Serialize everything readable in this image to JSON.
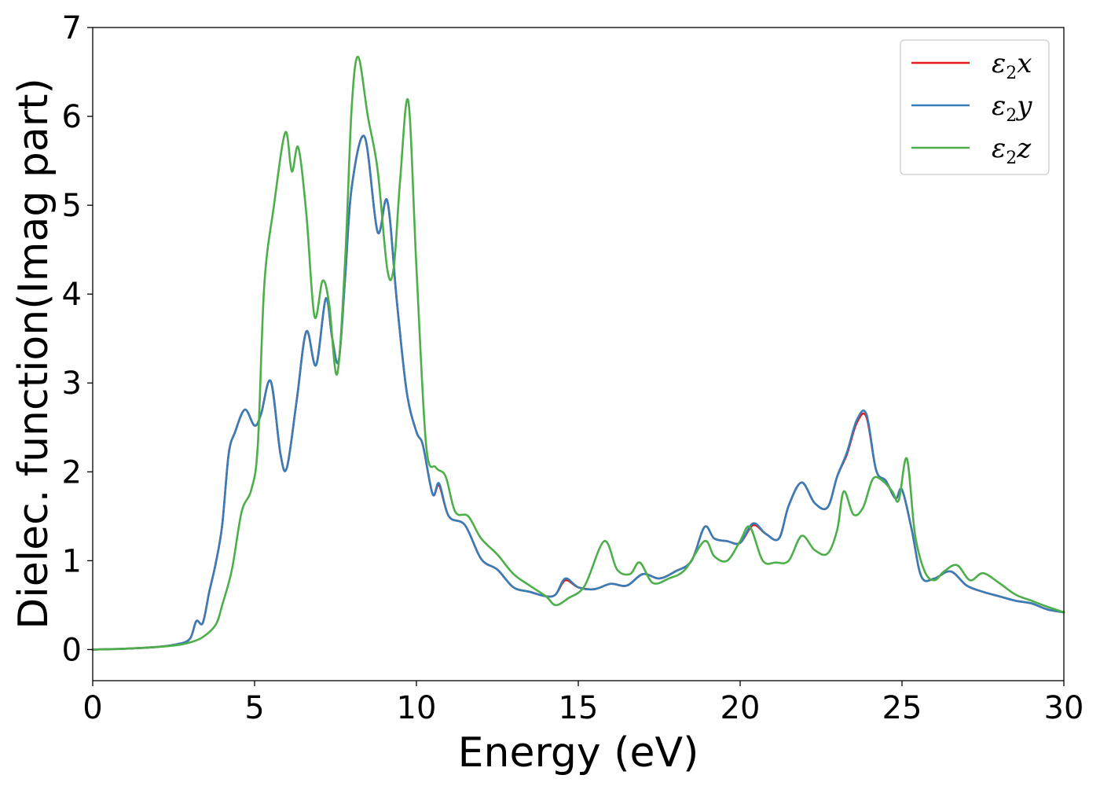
{
  "chart_data": {
    "type": "line",
    "xlabel": "Energy (eV)",
    "ylabel": "Dielec. function(Imag part)",
    "xlim": [
      0,
      30
    ],
    "ylim": [
      -0.35,
      7
    ],
    "xticks": [
      0,
      5,
      10,
      15,
      20,
      25,
      30
    ],
    "xtick_labels": [
      "0",
      "5",
      "10",
      "15",
      "20",
      "25",
      "30"
    ],
    "yticks": [
      0,
      1,
      2,
      3,
      4,
      5,
      6,
      7
    ],
    "ytick_labels": [
      "0",
      "1",
      "2",
      "3",
      "4",
      "5",
      "6",
      "7"
    ],
    "grid": false,
    "legend_position": "top-right",
    "series": [
      {
        "name": "ε2x",
        "legend_base": "ε",
        "legend_sub": "2",
        "legend_tail": "x",
        "color": "#e41a1c",
        "x": [
          0,
          1,
          2,
          2.6,
          3.0,
          3.2,
          3.4,
          3.6,
          3.8,
          4.0,
          4.2,
          4.4,
          4.7,
          5.0,
          5.2,
          5.5,
          5.8,
          6.0,
          6.3,
          6.6,
          6.9,
          7.2,
          7.4,
          7.6,
          7.8,
          8.0,
          8.4,
          8.8,
          9.1,
          9.4,
          9.7,
          10.0,
          10.2,
          10.5,
          10.7,
          11.0,
          11.5,
          12.0,
          12.5,
          13.0,
          13.5,
          14.0,
          14.3,
          14.6,
          15.0,
          15.5,
          16.0,
          16.5,
          17.0,
          17.5,
          18.0,
          18.5,
          18.9,
          19.2,
          19.6,
          20.0,
          20.4,
          20.8,
          21.2,
          21.5,
          21.9,
          22.3,
          22.7,
          23.0,
          23.3,
          23.6,
          23.9,
          24.2,
          24.5,
          24.8,
          25.0,
          25.3,
          25.6,
          26.0,
          26.5,
          27.0,
          27.5,
          28.0,
          28.5,
          29.0,
          29.5,
          30.0
        ],
        "values": [
          0.0,
          0.01,
          0.03,
          0.06,
          0.12,
          0.32,
          0.3,
          0.65,
          0.97,
          1.4,
          2.2,
          2.45,
          2.7,
          2.52,
          2.65,
          3.02,
          2.2,
          2.05,
          2.8,
          3.58,
          3.2,
          3.95,
          3.5,
          3.25,
          4.2,
          5.2,
          5.77,
          4.7,
          5.05,
          3.9,
          2.9,
          2.45,
          2.3,
          1.75,
          1.85,
          1.5,
          1.4,
          1.02,
          0.9,
          0.7,
          0.65,
          0.6,
          0.62,
          0.78,
          0.7,
          0.68,
          0.74,
          0.72,
          0.85,
          0.8,
          0.88,
          1.0,
          1.38,
          1.25,
          1.22,
          1.2,
          1.4,
          1.3,
          1.25,
          1.62,
          1.88,
          1.65,
          1.6,
          1.95,
          2.2,
          2.55,
          2.62,
          2.02,
          1.9,
          1.7,
          1.8,
          1.35,
          0.82,
          0.8,
          0.88,
          0.72,
          0.65,
          0.6,
          0.55,
          0.52,
          0.45,
          0.42
        ]
      },
      {
        "name": "ε2y",
        "legend_base": "ε",
        "legend_sub": "2",
        "legend_tail": "y",
        "color": "#377eb8",
        "x": [
          0,
          1,
          2,
          2.6,
          3.0,
          3.2,
          3.4,
          3.6,
          3.8,
          4.0,
          4.2,
          4.4,
          4.7,
          5.0,
          5.2,
          5.5,
          5.8,
          6.0,
          6.3,
          6.6,
          6.9,
          7.2,
          7.4,
          7.6,
          7.8,
          8.0,
          8.4,
          8.8,
          9.1,
          9.4,
          9.7,
          10.0,
          10.2,
          10.5,
          10.7,
          11.0,
          11.5,
          12.0,
          12.5,
          13.0,
          13.5,
          14.0,
          14.3,
          14.6,
          15.0,
          15.5,
          16.0,
          16.5,
          17.0,
          17.5,
          18.0,
          18.5,
          18.9,
          19.2,
          19.6,
          20.0,
          20.4,
          20.8,
          21.2,
          21.5,
          21.9,
          22.3,
          22.7,
          23.0,
          23.3,
          23.6,
          23.9,
          24.2,
          24.5,
          24.8,
          25.0,
          25.3,
          25.6,
          26.0,
          26.5,
          27.0,
          27.5,
          28.0,
          28.5,
          29.0,
          29.5,
          30.0
        ],
        "values": [
          0.0,
          0.01,
          0.03,
          0.06,
          0.12,
          0.32,
          0.3,
          0.65,
          0.97,
          1.4,
          2.2,
          2.45,
          2.7,
          2.52,
          2.65,
          3.02,
          2.2,
          2.05,
          2.8,
          3.58,
          3.2,
          3.95,
          3.5,
          3.25,
          4.2,
          5.2,
          5.77,
          4.7,
          5.05,
          3.9,
          2.9,
          2.45,
          2.3,
          1.75,
          1.87,
          1.5,
          1.4,
          1.02,
          0.9,
          0.7,
          0.65,
          0.6,
          0.62,
          0.8,
          0.7,
          0.68,
          0.74,
          0.72,
          0.85,
          0.8,
          0.88,
          1.0,
          1.38,
          1.25,
          1.22,
          1.2,
          1.42,
          1.3,
          1.25,
          1.62,
          1.88,
          1.65,
          1.6,
          1.95,
          2.22,
          2.58,
          2.65,
          2.02,
          1.9,
          1.7,
          1.8,
          1.35,
          0.82,
          0.8,
          0.88,
          0.72,
          0.65,
          0.6,
          0.55,
          0.52,
          0.45,
          0.42
        ]
      },
      {
        "name": "ε2z",
        "legend_base": "ε",
        "legend_sub": "2",
        "legend_tail": "z",
        "color": "#4daf4a",
        "x": [
          0,
          1,
          2,
          2.6,
          3.0,
          3.4,
          3.8,
          4.0,
          4.3,
          4.6,
          4.9,
          5.1,
          5.3,
          5.6,
          5.95,
          6.15,
          6.35,
          6.6,
          6.85,
          7.1,
          7.3,
          7.55,
          7.8,
          8.0,
          8.2,
          8.5,
          8.8,
          9.1,
          9.3,
          9.5,
          9.75,
          10.0,
          10.3,
          10.6,
          10.9,
          11.2,
          11.6,
          12.0,
          12.5,
          13.0,
          13.5,
          14.0,
          14.3,
          14.7,
          15.2,
          15.8,
          16.2,
          16.6,
          16.9,
          17.3,
          17.8,
          18.3,
          18.9,
          19.2,
          19.6,
          20.0,
          20.3,
          20.7,
          21.1,
          21.5,
          21.9,
          22.3,
          22.7,
          23.0,
          23.2,
          23.5,
          23.8,
          24.1,
          24.4,
          24.7,
          24.9,
          25.15,
          25.4,
          25.7,
          26.0,
          26.3,
          26.7,
          27.1,
          27.5,
          28.0,
          28.5,
          29.0,
          29.5,
          30.0
        ],
        "values": [
          0.0,
          0.01,
          0.03,
          0.05,
          0.08,
          0.14,
          0.28,
          0.5,
          0.9,
          1.55,
          1.8,
          2.3,
          4.1,
          5.0,
          5.82,
          5.38,
          5.65,
          4.9,
          3.75,
          4.15,
          3.9,
          3.1,
          4.4,
          6.1,
          6.67,
          6.0,
          5.4,
          4.28,
          4.3,
          5.3,
          6.17,
          4.3,
          2.3,
          2.05,
          1.95,
          1.55,
          1.5,
          1.25,
          1.07,
          0.85,
          0.72,
          0.6,
          0.5,
          0.58,
          0.72,
          1.22,
          0.9,
          0.85,
          0.98,
          0.75,
          0.8,
          0.9,
          1.22,
          1.05,
          1.0,
          1.22,
          1.38,
          1.0,
          0.98,
          1.0,
          1.28,
          1.12,
          1.08,
          1.35,
          1.78,
          1.52,
          1.6,
          1.92,
          1.9,
          1.78,
          1.68,
          2.15,
          1.3,
          0.88,
          0.78,
          0.88,
          0.95,
          0.78,
          0.86,
          0.75,
          0.62,
          0.55,
          0.48,
          0.42
        ]
      }
    ]
  }
}
